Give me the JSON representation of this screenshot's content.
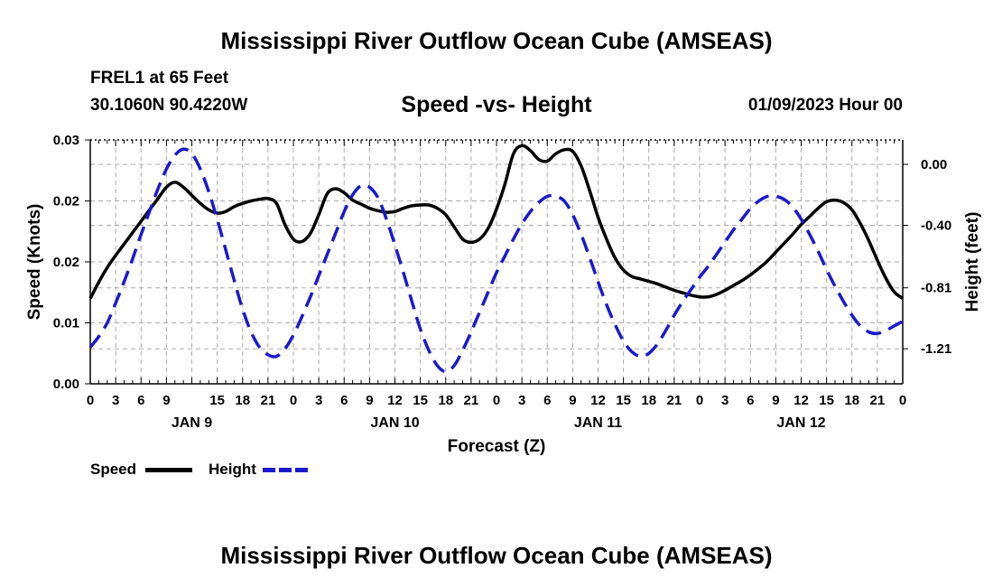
{
  "header": {
    "title": "Mississippi River Outflow Ocean Cube (AMSEAS)",
    "station": "FREL1 at 65 Feet",
    "coords": "30.1060N  90.4220W",
    "datetime": "01/09/2023 Hour 00",
    "footer_title": "Mississippi River Outflow Ocean Cube (AMSEAS)"
  },
  "legend": {
    "speed_label": "Speed",
    "height_label": "Height"
  },
  "colors": {
    "speed": "#000000",
    "height": "#1a1acc",
    "grid": "#aaaaaa"
  },
  "chart_data": {
    "type": "line",
    "title": "Speed -vs- Height",
    "xlabel": "Forecast (Z)",
    "ylabel": "Speed (Knots)",
    "y2label": "Height (feet)",
    "x_range_hours": [
      0,
      96
    ],
    "ylim": [
      0,
      0.03
    ],
    "y2lim": [
      -1.44,
      0.16
    ],
    "x_ticks": [
      0,
      3,
      6,
      9,
      12,
      15,
      18,
      21,
      24,
      27,
      30,
      33,
      36,
      39,
      42,
      45,
      48,
      51,
      54,
      57,
      60,
      63,
      66,
      69,
      72,
      75,
      78,
      81,
      84,
      87,
      90,
      93,
      96
    ],
    "x_tick_labels": [
      "0",
      "3",
      "6",
      "9",
      "15",
      "18",
      "21",
      "0",
      "3",
      "6",
      "9",
      "12",
      "15",
      "18",
      "21",
      "0",
      "3",
      "6",
      "9",
      "12",
      "15",
      "18",
      "21",
      "0",
      "3",
      "6",
      "9",
      "12",
      "15",
      "18",
      "21",
      "0"
    ],
    "x_tick_label_hours": [
      0,
      3,
      6,
      9,
      15,
      18,
      21,
      24,
      27,
      30,
      33,
      36,
      39,
      42,
      45,
      48,
      51,
      54,
      57,
      60,
      63,
      66,
      69,
      72,
      75,
      78,
      81,
      84,
      87,
      90,
      93,
      96
    ],
    "day_labels": [
      {
        "label": "JAN 9",
        "hour": 12
      },
      {
        "label": "JAN 10",
        "hour": 36
      },
      {
        "label": "JAN 11",
        "hour": 60
      },
      {
        "label": "JAN 12",
        "hour": 84
      }
    ],
    "y_ticks": [
      0,
      0.0075,
      0.015,
      0.0225,
      0.03
    ],
    "y_tick_labels": [
      "0.00",
      "0.01",
      "0.02",
      "0.02",
      "0.03"
    ],
    "y2_ticks": [
      0.0,
      -0.4,
      -0.81,
      -1.21
    ],
    "y2_tick_labels": [
      "0.00",
      "-0.40",
      "-0.81",
      "-1.21"
    ],
    "series": [
      {
        "name": "Speed",
        "axis": "left",
        "style": "solid",
        "x": [
          0,
          1,
          2,
          3,
          4,
          5,
          6,
          7,
          8,
          9,
          10,
          11,
          12,
          13,
          14,
          15,
          16,
          17,
          18,
          19,
          20,
          21,
          22,
          23,
          24,
          25,
          26,
          27,
          28,
          29,
          30,
          31,
          32,
          33,
          34,
          35,
          36,
          37,
          38,
          39,
          40,
          41,
          42,
          43,
          44,
          45,
          46,
          47,
          48,
          49,
          50,
          51,
          52,
          53,
          54,
          55,
          56,
          57,
          58,
          59,
          60,
          61,
          62,
          63,
          64,
          65,
          66,
          67,
          68,
          69,
          70,
          71,
          72,
          73,
          74,
          75,
          76,
          77,
          78,
          79,
          80,
          81,
          82,
          83,
          84,
          85,
          86,
          87,
          88,
          89,
          90,
          91,
          92,
          93,
          94,
          95,
          96
        ],
        "values": [
          0.0105,
          0.0125,
          0.0143,
          0.0158,
          0.0172,
          0.0186,
          0.02,
          0.0214,
          0.0228,
          0.0242,
          0.0248,
          0.0242,
          0.0232,
          0.0222,
          0.0214,
          0.021,
          0.0212,
          0.0218,
          0.0222,
          0.0225,
          0.0227,
          0.0228,
          0.0222,
          0.0196,
          0.0178,
          0.0175,
          0.0185,
          0.0208,
          0.0234,
          0.024,
          0.0235,
          0.0226,
          0.0221,
          0.0216,
          0.0213,
          0.0211,
          0.0212,
          0.0216,
          0.0219,
          0.022,
          0.022,
          0.0216,
          0.0208,
          0.0193,
          0.0178,
          0.0174,
          0.0178,
          0.0191,
          0.0215,
          0.0246,
          0.0283,
          0.0293,
          0.0287,
          0.0276,
          0.0274,
          0.0283,
          0.0288,
          0.0286,
          0.0268,
          0.0238,
          0.0205,
          0.0178,
          0.0155,
          0.014,
          0.0132,
          0.0129,
          0.0126,
          0.0123,
          0.0119,
          0.0115,
          0.0112,
          0.0109,
          0.0107,
          0.0107,
          0.011,
          0.0115,
          0.0121,
          0.0127,
          0.0134,
          0.0142,
          0.0151,
          0.0162,
          0.0173,
          0.0184,
          0.0196,
          0.0206,
          0.0216,
          0.0224,
          0.0226,
          0.0223,
          0.0214,
          0.0197,
          0.0176,
          0.0152,
          0.013,
          0.0113,
          0.0105
        ]
      },
      {
        "name": "Height",
        "axis": "right",
        "style": "dashed",
        "x": [
          0,
          1,
          2,
          3,
          4,
          5,
          6,
          7,
          8,
          9,
          10,
          11,
          12,
          13,
          14,
          15,
          16,
          17,
          18,
          19,
          20,
          21,
          22,
          23,
          24,
          25,
          26,
          27,
          28,
          29,
          30,
          31,
          32,
          33,
          34,
          35,
          36,
          37,
          38,
          39,
          40,
          41,
          42,
          43,
          44,
          45,
          46,
          47,
          48,
          49,
          50,
          51,
          52,
          53,
          54,
          55,
          56,
          57,
          58,
          59,
          60,
          61,
          62,
          63,
          64,
          65,
          66,
          67,
          68,
          69,
          70,
          71,
          72,
          73,
          74,
          75,
          76,
          77,
          78,
          79,
          80,
          81,
          82,
          83,
          84,
          85,
          86,
          87,
          88,
          89,
          90,
          91,
          92,
          93,
          94,
          95,
          96
        ],
        "values": [
          -1.2,
          -1.13,
          -1.04,
          -0.91,
          -0.77,
          -0.62,
          -0.46,
          -0.31,
          -0.16,
          -0.03,
          0.06,
          0.1,
          0.07,
          -0.03,
          -0.18,
          -0.36,
          -0.56,
          -0.76,
          -0.95,
          -1.1,
          -1.2,
          -1.25,
          -1.26,
          -1.21,
          -1.12,
          -1.0,
          -0.87,
          -0.73,
          -0.59,
          -0.45,
          -0.31,
          -0.2,
          -0.14,
          -0.15,
          -0.22,
          -0.36,
          -0.53,
          -0.71,
          -0.9,
          -1.08,
          -1.22,
          -1.32,
          -1.36,
          -1.32,
          -1.22,
          -1.1,
          -0.97,
          -0.84,
          -0.71,
          -0.6,
          -0.49,
          -0.39,
          -0.31,
          -0.25,
          -0.21,
          -0.21,
          -0.24,
          -0.33,
          -0.46,
          -0.61,
          -0.77,
          -0.92,
          -1.05,
          -1.16,
          -1.23,
          -1.26,
          -1.24,
          -1.18,
          -1.09,
          -0.99,
          -0.9,
          -0.82,
          -0.74,
          -0.67,
          -0.59,
          -0.51,
          -0.43,
          -0.36,
          -0.29,
          -0.24,
          -0.21,
          -0.21,
          -0.23,
          -0.28,
          -0.36,
          -0.46,
          -0.57,
          -0.69,
          -0.8,
          -0.9,
          -0.99,
          -1.06,
          -1.1,
          -1.11,
          -1.09,
          -1.06,
          -1.03
        ]
      }
    ]
  }
}
